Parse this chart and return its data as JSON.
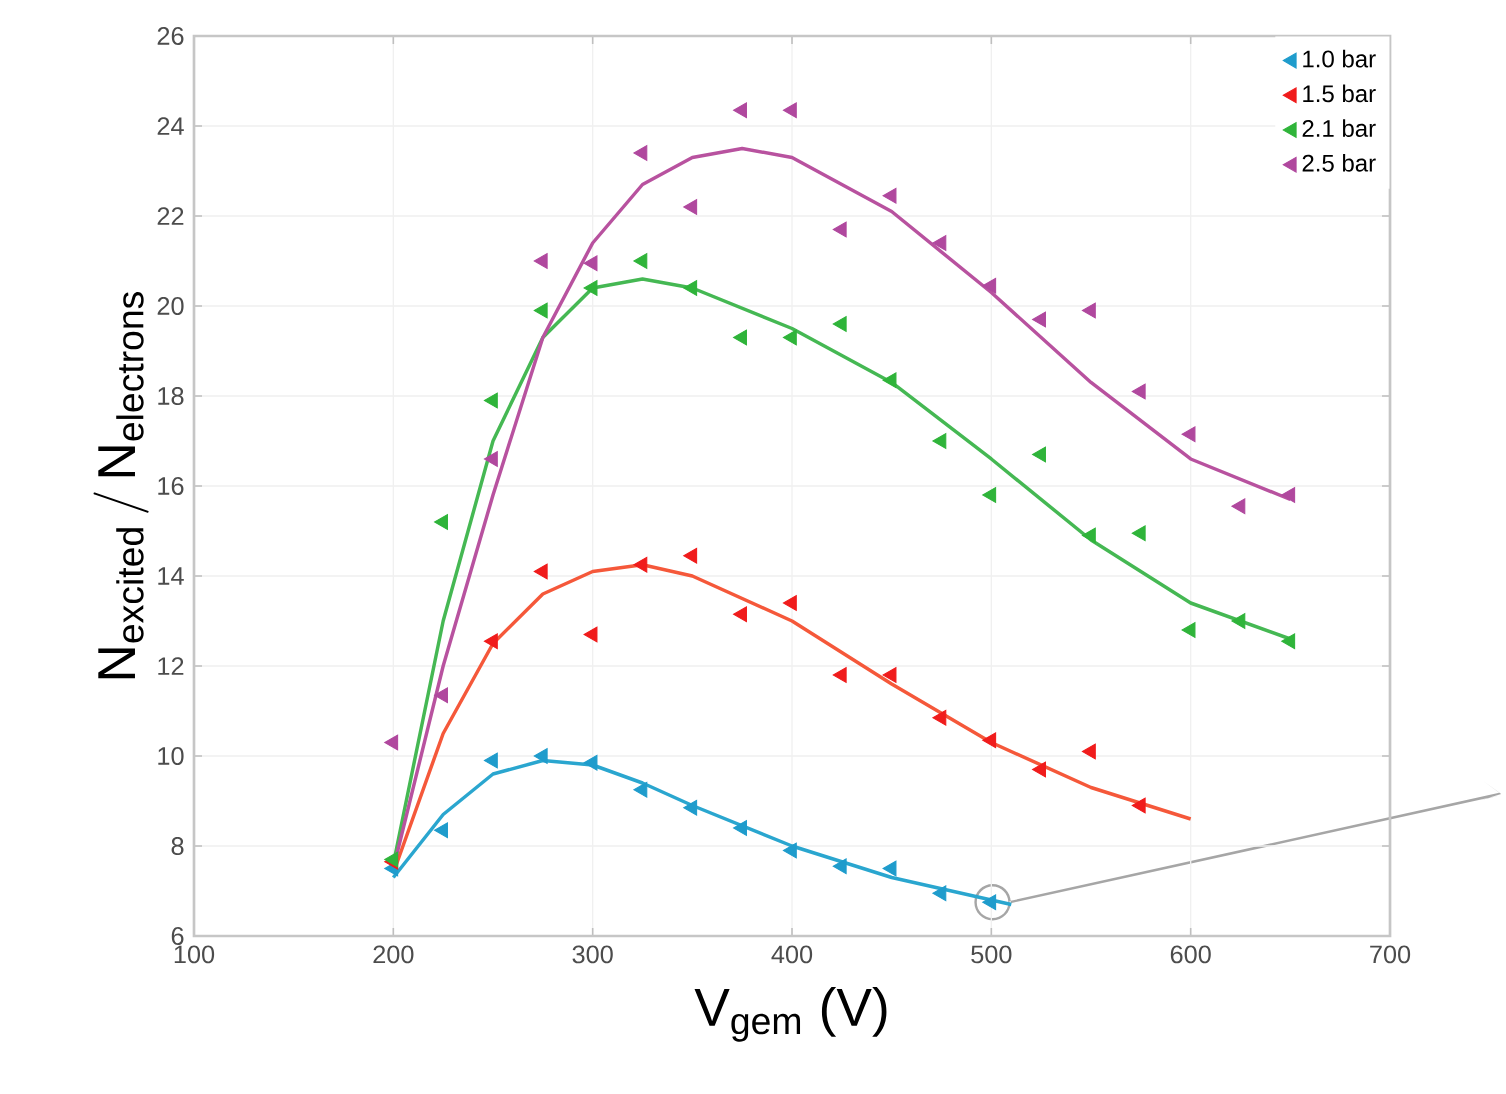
{
  "chart_data": {
    "type": "scatter",
    "xlabel": "V$_{gem}$ (V)",
    "ylabel": "\\mathrm{N_{excited}\\,/\\,N_{electrons}}",
    "xlim": [
      100,
      700
    ],
    "ylim": [
      6,
      26
    ],
    "xticks": [
      100,
      200,
      300,
      400,
      500,
      600,
      700
    ],
    "yticks": [
      6,
      8,
      10,
      12,
      14,
      16,
      18,
      20,
      22,
      24,
      26
    ],
    "grid": true,
    "legend": "top right",
    "marker": "triangle",
    "series": [
      {
        "name": "1.0 bar",
        "color": "#1f9ccc",
        "x": [
          200,
          225,
          250,
          275,
          300,
          325,
          350,
          375,
          400,
          425,
          450,
          475,
          500
        ],
        "values": [
          7.5,
          8.35,
          9.9,
          10.0,
          9.85,
          9.25,
          8.85,
          8.4,
          7.9,
          7.55,
          7.5,
          6.95,
          6.75
        ]
      },
      {
        "name": "1.5 bar",
        "color": "#f01c1c",
        "x": [
          200,
          250,
          275,
          300,
          325,
          350,
          375,
          400,
          425,
          450,
          475,
          500,
          525,
          550,
          575
        ],
        "values": [
          7.65,
          12.55,
          14.1,
          12.7,
          14.25,
          14.45,
          13.15,
          13.4,
          11.8,
          11.8,
          10.85,
          10.35,
          9.7,
          10.1,
          8.9
        ]
      },
      {
        "name": "2.1 bar",
        "color": "#2fb43a",
        "x": [
          200,
          225,
          250,
          275,
          300,
          325,
          350,
          375,
          400,
          425,
          450,
          475,
          500,
          525,
          550,
          575,
          600,
          625,
          650
        ],
        "values": [
          7.7,
          15.2,
          17.9,
          19.9,
          20.4,
          21.0,
          20.4,
          19.3,
          19.3,
          19.6,
          18.35,
          17.0,
          15.8,
          16.7,
          14.9,
          14.95,
          12.8,
          13.0,
          12.55
        ]
      },
      {
        "name": "2.5 bar",
        "color": "#b0489e",
        "x": [
          200,
          225,
          250,
          275,
          300,
          325,
          350,
          375,
          400,
          425,
          450,
          475,
          500,
          525,
          550,
          575,
          600,
          625,
          650
        ],
        "values": [
          10.3,
          11.35,
          16.6,
          21.0,
          20.95,
          23.4,
          22.2,
          24.35,
          24.35,
          21.7,
          22.45,
          21.4,
          20.45,
          19.7,
          19.9,
          18.1,
          17.15,
          15.55,
          15.8
        ]
      },
      {
        "type": "line",
        "marker": "none",
        "color": "#2aa6cf",
        "x": [
          200,
          225,
          250,
          275,
          300,
          325,
          350,
          400,
          450,
          510
        ],
        "values": [
          7.3,
          8.7,
          9.6,
          9.9,
          9.8,
          9.4,
          8.9,
          8.0,
          7.3,
          6.7
        ]
      },
      {
        "type": "line",
        "marker": "none",
        "color": "#f5583a",
        "x": [
          200,
          225,
          250,
          275,
          300,
          325,
          350,
          400,
          450,
          500,
          550,
          600
        ],
        "values": [
          7.4,
          10.5,
          12.5,
          13.6,
          14.1,
          14.25,
          14.0,
          13.0,
          11.6,
          10.3,
          9.3,
          8.6
        ]
      },
      {
        "type": "line",
        "marker": "none",
        "color": "#45b853",
        "x": [
          200,
          225,
          250,
          275,
          300,
          325,
          350,
          400,
          450,
          500,
          550,
          600,
          650
        ],
        "values": [
          7.6,
          13.0,
          17.0,
          19.3,
          20.4,
          20.6,
          20.4,
          19.5,
          18.3,
          16.6,
          14.8,
          13.4,
          12.6
        ]
      },
      {
        "type": "line",
        "marker": "none",
        "color": "#b8529f",
        "x": [
          200,
          225,
          250,
          275,
          300,
          325,
          350,
          375,
          400,
          450,
          500,
          550,
          600,
          650
        ],
        "values": [
          7.5,
          12.0,
          15.8,
          19.3,
          21.4,
          22.7,
          23.3,
          23.5,
          23.3,
          22.1,
          20.3,
          18.3,
          16.6,
          15.7
        ]
      }
    ]
  }
}
